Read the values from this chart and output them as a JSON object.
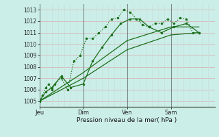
{
  "title": "Pression niveau de la mer( hPa )",
  "bg_color": "#cceee8",
  "line_color": "#1a6e1a",
  "ylim": [
    1004.5,
    1013.5
  ],
  "yticks": [
    1005,
    1006,
    1007,
    1008,
    1009,
    1010,
    1011,
    1012,
    1013
  ],
  "day_labels": [
    "Jeu",
    "Dim",
    "Ven",
    "Sam"
  ],
  "day_positions": [
    0,
    56,
    112,
    168
  ],
  "total_hours": 224,
  "series1_x": [
    0,
    4,
    8,
    12,
    16,
    20,
    28,
    36,
    44,
    52,
    60,
    68,
    76,
    84,
    92,
    100,
    108,
    116,
    124,
    132,
    140,
    148,
    156,
    164,
    172,
    180,
    188,
    196,
    204
  ],
  "series1_y": [
    1005.0,
    1005.5,
    1006.2,
    1006.5,
    1006.0,
    1006.5,
    1007.0,
    1006.0,
    1008.5,
    1009.0,
    1010.5,
    1010.5,
    1011.0,
    1011.5,
    1012.2,
    1012.3,
    1013.0,
    1012.8,
    1012.2,
    1011.7,
    1011.5,
    1011.8,
    1011.8,
    1012.2,
    1011.8,
    1012.3,
    1012.2,
    1011.0,
    1011.0
  ],
  "series2_x": [
    0,
    8,
    16,
    28,
    40,
    56,
    68,
    80,
    92,
    104,
    116,
    128,
    140,
    156,
    172,
    188,
    204
  ],
  "series2_y": [
    1005.0,
    1005.8,
    1006.2,
    1007.2,
    1006.2,
    1006.5,
    1008.5,
    1009.7,
    1010.8,
    1011.8,
    1012.2,
    1012.2,
    1011.5,
    1011.0,
    1011.5,
    1011.8,
    1011.0
  ],
  "series3_x": [
    0,
    56,
    112,
    168,
    204
  ],
  "series3_y": [
    1005.0,
    1007.0,
    1009.5,
    1010.8,
    1011.0
  ],
  "series4_x": [
    0,
    56,
    112,
    168,
    204
  ],
  "series4_y": [
    1005.0,
    1007.5,
    1010.3,
    1011.5,
    1011.5
  ],
  "hgrid_color": "#d4b8b8",
  "vgrid_color": "#c8dcd8",
  "vday_color": "#7a8a88"
}
